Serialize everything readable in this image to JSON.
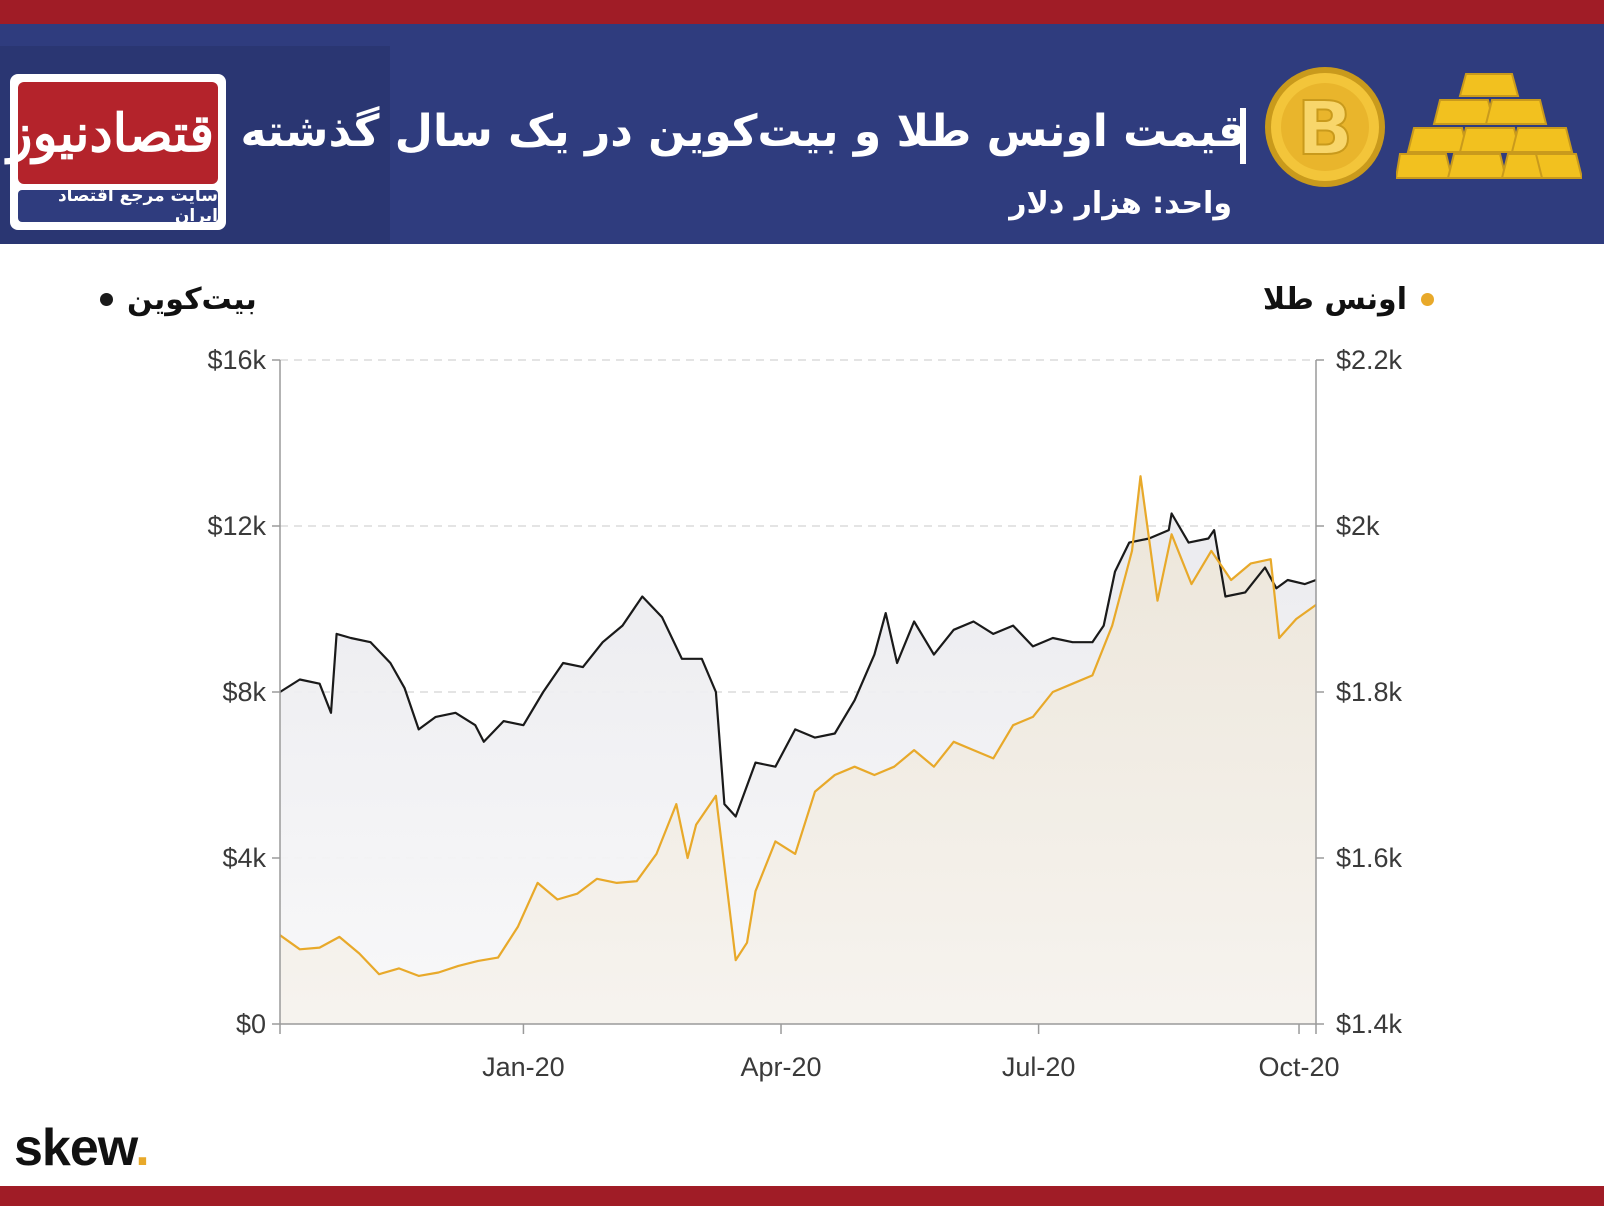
{
  "header": {
    "title": "قیمت اونس طلا و بیت‌کوین در یک سال گذشته",
    "subtitle": "واحد: هزار دلار",
    "logo_text": "اقتصادنیوز",
    "logo_subtitle": "سایت مرجع اقتصاد ایران"
  },
  "colors": {
    "gold": "#e8a92a",
    "bitcoin": "#1a1a1a",
    "header_bg": "#2f3c7e",
    "accent_red": "#a01c26"
  },
  "footer": {
    "brand": "skew",
    "brand_dot": "."
  },
  "chart_data": {
    "type": "line",
    "title": "قیمت اونس طلا و بیت‌کوین در یک سال گذشته",
    "x_tick_labels": [
      "Jan-20",
      "Apr-20",
      "Jul-20",
      "Oct-20"
    ],
    "x_tick_dates": [
      "2020-01-01",
      "2020-04-01",
      "2020-07-01",
      "2020-10-01"
    ],
    "xlim": [
      "2019-10-07",
      "2020-10-07"
    ],
    "y_left": {
      "ylim": [
        0,
        16000
      ],
      "ticks": [
        0,
        4000,
        8000,
        12000,
        16000
      ],
      "tick_labels": [
        "$0",
        "$4k",
        "$8k",
        "$12k",
        "$16k"
      ]
    },
    "y_right": {
      "ylim": [
        1400,
        2200
      ],
      "ticks": [
        1400,
        1600,
        1800,
        2000,
        2200
      ],
      "tick_labels": [
        "$1.4k",
        "$1.6k",
        "$1.8k",
        "$2k",
        "$2.2k"
      ]
    },
    "grid": true,
    "legend_placement": "top",
    "series": [
      {
        "name": "بیت‌کوین",
        "axis": "left",
        "color": "#1a1a1a",
        "points": [
          [
            "2019-10-07",
            8000
          ],
          [
            "2019-10-14",
            8300
          ],
          [
            "2019-10-21",
            8200
          ],
          [
            "2019-10-25",
            7500
          ],
          [
            "2019-10-27",
            9400
          ],
          [
            "2019-11-01",
            9300
          ],
          [
            "2019-11-08",
            9200
          ],
          [
            "2019-11-15",
            8700
          ],
          [
            "2019-11-20",
            8100
          ],
          [
            "2019-11-25",
            7100
          ],
          [
            "2019-12-01",
            7400
          ],
          [
            "2019-12-08",
            7500
          ],
          [
            "2019-12-15",
            7200
          ],
          [
            "2019-12-18",
            6800
          ],
          [
            "2019-12-25",
            7300
          ],
          [
            "2020-01-01",
            7200
          ],
          [
            "2020-01-08",
            8000
          ],
          [
            "2020-01-15",
            8700
          ],
          [
            "2020-01-22",
            8600
          ],
          [
            "2020-01-29",
            9200
          ],
          [
            "2020-02-05",
            9600
          ],
          [
            "2020-02-12",
            10300
          ],
          [
            "2020-02-19",
            9800
          ],
          [
            "2020-02-26",
            8800
          ],
          [
            "2020-03-04",
            8800
          ],
          [
            "2020-03-09",
            8000
          ],
          [
            "2020-03-12",
            5300
          ],
          [
            "2020-03-16",
            5000
          ],
          [
            "2020-03-23",
            6300
          ],
          [
            "2020-03-30",
            6200
          ],
          [
            "2020-04-06",
            7100
          ],
          [
            "2020-04-13",
            6900
          ],
          [
            "2020-04-20",
            7000
          ],
          [
            "2020-04-27",
            7800
          ],
          [
            "2020-05-04",
            8900
          ],
          [
            "2020-05-08",
            9900
          ],
          [
            "2020-05-12",
            8700
          ],
          [
            "2020-05-18",
            9700
          ],
          [
            "2020-05-25",
            8900
          ],
          [
            "2020-06-01",
            9500
          ],
          [
            "2020-06-08",
            9700
          ],
          [
            "2020-06-15",
            9400
          ],
          [
            "2020-06-22",
            9600
          ],
          [
            "2020-06-29",
            9100
          ],
          [
            "2020-07-06",
            9300
          ],
          [
            "2020-07-13",
            9200
          ],
          [
            "2020-07-20",
            9200
          ],
          [
            "2020-07-24",
            9600
          ],
          [
            "2020-07-28",
            10900
          ],
          [
            "2020-08-02",
            11600
          ],
          [
            "2020-08-09",
            11700
          ],
          [
            "2020-08-16",
            11900
          ],
          [
            "2020-08-17",
            12300
          ],
          [
            "2020-08-23",
            11600
          ],
          [
            "2020-08-30",
            11700
          ],
          [
            "2020-09-01",
            11900
          ],
          [
            "2020-09-05",
            10300
          ],
          [
            "2020-09-12",
            10400
          ],
          [
            "2020-09-19",
            11000
          ],
          [
            "2020-09-23",
            10500
          ],
          [
            "2020-09-27",
            10700
          ],
          [
            "2020-10-03",
            10600
          ],
          [
            "2020-10-07",
            10700
          ]
        ]
      },
      {
        "name": "اونس طلا",
        "axis": "right",
        "color": "#e8a92a",
        "points": [
          [
            "2019-10-07",
            1507
          ],
          [
            "2019-10-14",
            1490
          ],
          [
            "2019-10-21",
            1492
          ],
          [
            "2019-10-28",
            1505
          ],
          [
            "2019-11-04",
            1485
          ],
          [
            "2019-11-11",
            1460
          ],
          [
            "2019-11-18",
            1467
          ],
          [
            "2019-11-25",
            1458
          ],
          [
            "2019-12-02",
            1462
          ],
          [
            "2019-12-09",
            1470
          ],
          [
            "2019-12-16",
            1476
          ],
          [
            "2019-12-23",
            1480
          ],
          [
            "2019-12-30",
            1517
          ],
          [
            "2020-01-06",
            1570
          ],
          [
            "2020-01-13",
            1550
          ],
          [
            "2020-01-20",
            1557
          ],
          [
            "2020-01-27",
            1575
          ],
          [
            "2020-02-03",
            1570
          ],
          [
            "2020-02-10",
            1572
          ],
          [
            "2020-02-17",
            1605
          ],
          [
            "2020-02-24",
            1665
          ],
          [
            "2020-02-28",
            1600
          ],
          [
            "2020-03-02",
            1640
          ],
          [
            "2020-03-09",
            1675
          ],
          [
            "2020-03-16",
            1477
          ],
          [
            "2020-03-20",
            1498
          ],
          [
            "2020-03-23",
            1560
          ],
          [
            "2020-03-30",
            1620
          ],
          [
            "2020-04-06",
            1605
          ],
          [
            "2020-04-13",
            1680
          ],
          [
            "2020-04-20",
            1700
          ],
          [
            "2020-04-27",
            1710
          ],
          [
            "2020-05-04",
            1700
          ],
          [
            "2020-05-11",
            1710
          ],
          [
            "2020-05-18",
            1730
          ],
          [
            "2020-05-25",
            1710
          ],
          [
            "2020-06-01",
            1740
          ],
          [
            "2020-06-08",
            1730
          ],
          [
            "2020-06-15",
            1720
          ],
          [
            "2020-06-22",
            1760
          ],
          [
            "2020-06-29",
            1770
          ],
          [
            "2020-07-06",
            1800
          ],
          [
            "2020-07-13",
            1810
          ],
          [
            "2020-07-20",
            1820
          ],
          [
            "2020-07-27",
            1880
          ],
          [
            "2020-08-03",
            1970
          ],
          [
            "2020-08-06",
            2060
          ],
          [
            "2020-08-12",
            1910
          ],
          [
            "2020-08-17",
            1990
          ],
          [
            "2020-08-24",
            1930
          ],
          [
            "2020-08-31",
            1970
          ],
          [
            "2020-09-07",
            1935
          ],
          [
            "2020-09-14",
            1955
          ],
          [
            "2020-09-21",
            1960
          ],
          [
            "2020-09-24",
            1865
          ],
          [
            "2020-09-30",
            1888
          ],
          [
            "2020-10-07",
            1905
          ]
        ]
      }
    ]
  }
}
